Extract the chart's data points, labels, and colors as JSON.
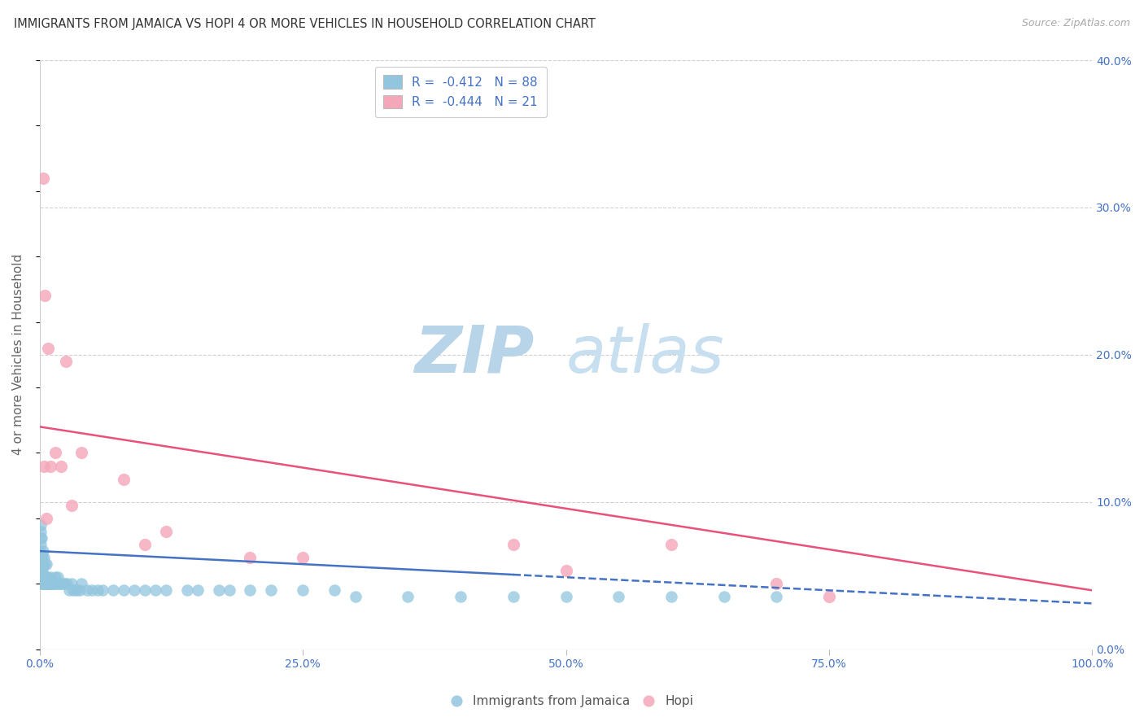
{
  "title": "IMMIGRANTS FROM JAMAICA VS HOPI 4 OR MORE VEHICLES IN HOUSEHOLD CORRELATION CHART",
  "source": "Source: ZipAtlas.com",
  "ylabel": "4 or more Vehicles in Household",
  "legend_entry1": "R =  -0.412   N = 88",
  "legend_entry2": "R =  -0.444   N = 21",
  "blue_color": "#92c5de",
  "pink_color": "#f4a7b9",
  "blue_line_color": "#4472c4",
  "pink_line_color": "#e8527a",
  "watermark_zip": "ZIP",
  "watermark_atlas": "atlas",
  "watermark_color_zip": "#b8d4e8",
  "watermark_color_atlas": "#c8dff0",
  "title_color": "#333333",
  "axis_color": "#4472c4",
  "legend_label1": "Immigrants from Jamaica",
  "legend_label2": "Hopi",
  "blue_scatter_x": [
    0.05,
    0.08,
    0.1,
    0.1,
    0.12,
    0.15,
    0.15,
    0.18,
    0.2,
    0.2,
    0.22,
    0.25,
    0.25,
    0.28,
    0.3,
    0.3,
    0.32,
    0.35,
    0.35,
    0.38,
    0.4,
    0.42,
    0.45,
    0.48,
    0.5,
    0.5,
    0.52,
    0.55,
    0.58,
    0.6,
    0.65,
    0.7,
    0.75,
    0.8,
    0.85,
    0.9,
    0.95,
    1.0,
    1.1,
    1.2,
    1.3,
    1.4,
    1.5,
    1.6,
    1.7,
    1.8,
    1.9,
    2.0,
    2.2,
    2.4,
    2.6,
    2.8,
    3.0,
    3.2,
    3.5,
    3.8,
    4.0,
    4.5,
    5.0,
    5.5,
    6.0,
    7.0,
    8.0,
    9.0,
    10.0,
    11.0,
    12.0,
    14.0,
    15.0,
    17.0,
    18.0,
    20.0,
    22.0,
    25.0,
    28.0,
    30.0,
    35.0,
    40.0,
    45.0,
    50.0,
    55.0,
    60.0,
    65.0,
    70.0,
    0.06,
    0.09,
    0.11,
    0.13
  ],
  "blue_scatter_y": [
    7.5,
    8.0,
    6.5,
    9.0,
    5.5,
    7.0,
    6.0,
    5.0,
    8.5,
    6.5,
    5.5,
    7.0,
    5.0,
    6.0,
    7.5,
    5.5,
    5.0,
    6.5,
    5.5,
    5.0,
    7.0,
    5.5,
    5.5,
    5.0,
    6.5,
    5.0,
    5.5,
    5.0,
    5.0,
    6.5,
    5.0,
    5.0,
    5.5,
    5.0,
    5.0,
    5.0,
    5.0,
    5.5,
    5.0,
    5.0,
    5.0,
    5.0,
    5.5,
    5.0,
    5.5,
    5.0,
    5.0,
    5.0,
    5.0,
    5.0,
    5.0,
    4.5,
    5.0,
    4.5,
    4.5,
    4.5,
    5.0,
    4.5,
    4.5,
    4.5,
    4.5,
    4.5,
    4.5,
    4.5,
    4.5,
    4.5,
    4.5,
    4.5,
    4.5,
    4.5,
    4.5,
    4.5,
    4.5,
    4.5,
    4.5,
    4.0,
    4.0,
    4.0,
    4.0,
    4.0,
    4.0,
    4.0,
    4.0,
    4.0,
    9.5,
    8.5,
    7.0,
    6.0
  ],
  "pink_scatter_x": [
    0.3,
    0.5,
    0.8,
    1.5,
    2.5,
    4.0,
    8.0,
    10.0,
    25.0,
    45.0,
    60.0,
    75.0,
    0.4,
    1.0,
    3.0,
    12.0,
    20.0,
    50.0,
    70.0,
    0.6,
    2.0
  ],
  "pink_scatter_y": [
    36,
    27,
    23,
    15,
    22,
    15,
    13,
    8,
    7,
    8,
    8,
    4,
    14,
    14,
    11,
    9,
    7,
    6,
    5,
    10,
    14
  ],
  "blue_trend_x0": 0,
  "blue_trend_x1": 100,
  "blue_trend_y0": 7.5,
  "blue_trend_y1": 3.5,
  "blue_dash_x0": 45,
  "blue_dash_x1": 100,
  "pink_trend_x0": 0,
  "pink_trend_x1": 100,
  "pink_trend_y0": 17.0,
  "pink_trend_y1": 4.5,
  "xlim_min": 0,
  "xlim_max": 100,
  "ylim_min": 0,
  "ylim_max": 45,
  "scale_factor": 1.125,
  "grid_color": "#d0d0d0",
  "yticks_pct": [
    0,
    10,
    20,
    30,
    40
  ],
  "ytick_labels": [
    "0.0%",
    "10.0%",
    "20.0%",
    "30.0%",
    "40.0%"
  ],
  "xticks": [
    0,
    25,
    50,
    75,
    100
  ],
  "xtick_labels": [
    "0.0%",
    "25.0%",
    "50.0%",
    "75.0%",
    "100.0%"
  ]
}
